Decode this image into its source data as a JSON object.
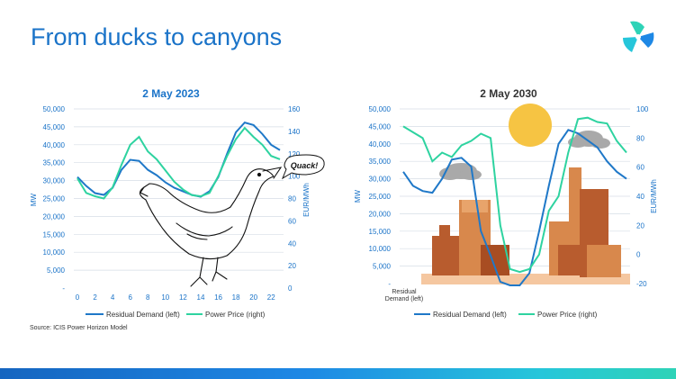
{
  "title": "From ducks to canyons",
  "source": "Source: ICIS Power Horizon Model",
  "colors": {
    "accent": "#1a73c8",
    "residual_demand": "#1f78c8",
    "power_price": "#2ed3a0"
  },
  "logo_icon": "icis-logo-icon",
  "illustrations": {
    "duck_speech": "Quack!",
    "left_chart_illustration": "duck-drawing",
    "right_chart_illustration": "canyon-landscape-with-sun-and-clouds"
  },
  "chart_data": [
    {
      "type": "line",
      "title": "2 May 2023",
      "ylabel": "MW",
      "y2label": "EUR/MWh",
      "ylim": [
        0,
        50000
      ],
      "y2lim": [
        0,
        160
      ],
      "x": [
        0,
        1,
        2,
        3,
        4,
        5,
        6,
        7,
        8,
        9,
        10,
        11,
        12,
        13,
        14,
        15,
        16,
        17,
        18,
        19,
        20,
        21,
        22,
        23
      ],
      "x_ticks": [
        "0",
        "2",
        "4",
        "6",
        "8",
        "10",
        "12",
        "14",
        "16",
        "18",
        "20",
        "22"
      ],
      "y_ticks": [
        "-",
        "5,000",
        "10,000",
        "15,000",
        "20,000",
        "25,000",
        "30,000",
        "35,000",
        "40,000",
        "45,000",
        "50,000"
      ],
      "y2_ticks": [
        "0",
        "20",
        "40",
        "60",
        "80",
        "100",
        "120",
        "140",
        "160"
      ],
      "series": [
        {
          "name": "Residual Demand (left)",
          "axis": "left",
          "values": [
            31000,
            28500,
            26500,
            26000,
            28000,
            33000,
            35800,
            35500,
            33000,
            31500,
            29500,
            28000,
            27000,
            26000,
            25500,
            27000,
            31000,
            37500,
            43500,
            46200,
            45500,
            43000,
            40000,
            38500
          ]
        },
        {
          "name": "Power Price (right)",
          "axis": "right",
          "values": [
            98,
            85,
            82,
            80,
            90,
            110,
            128,
            135,
            122,
            115,
            105,
            95,
            88,
            83,
            82,
            85,
            100,
            118,
            133,
            143,
            135,
            128,
            118,
            115
          ]
        }
      ],
      "legend": "bottom"
    },
    {
      "type": "line",
      "title": "2 May 2030",
      "ylabel": "MW",
      "y2label": "EUR/MWh",
      "xlabel": "Residual Demand (left)",
      "ylim": [
        0,
        50000
      ],
      "y2lim": [
        -20,
        100
      ],
      "x": [
        0,
        1,
        2,
        3,
        4,
        5,
        6,
        7,
        8,
        9,
        10,
        11,
        12,
        13,
        14,
        15,
        16,
        17,
        18,
        19,
        20,
        21,
        22,
        23
      ],
      "y_ticks": [
        "-",
        "5,000",
        "10,000",
        "15,000",
        "20,000",
        "25,000",
        "30,000",
        "35,000",
        "40,000",
        "45,000",
        "50,000"
      ],
      "y2_ticks": [
        "-20",
        "0",
        "20",
        "40",
        "60",
        "80",
        "100"
      ],
      "series": [
        {
          "name": "Residual Demand (left)",
          "axis": "left",
          "values": [
            32000,
            28000,
            26500,
            26000,
            30000,
            35500,
            36000,
            33500,
            15000,
            8000,
            500,
            -500,
            -500,
            3000,
            15000,
            28000,
            40000,
            44000,
            43000,
            41000,
            39000,
            35000,
            32000,
            30000
          ]
        },
        {
          "name": "Power Price (right)",
          "axis": "right",
          "values": [
            88,
            84,
            80,
            64,
            70,
            67,
            75,
            78,
            83,
            80,
            20,
            -10,
            -12,
            -10,
            0,
            30,
            40,
            70,
            93,
            94,
            91,
            90,
            78,
            70
          ]
        }
      ],
      "legend": "bottom"
    }
  ]
}
